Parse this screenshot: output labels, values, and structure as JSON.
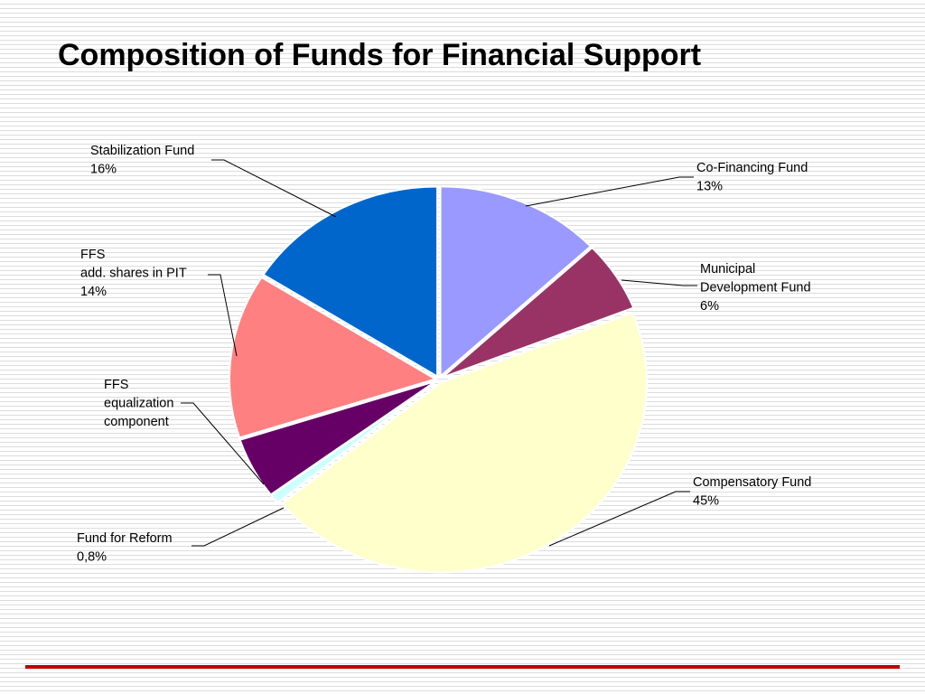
{
  "slide": {
    "title": "Composition of Funds for Financial Support"
  },
  "colors": {
    "accent_rule": "#c00000"
  },
  "chart_data": {
    "type": "pie",
    "title": "",
    "slices": [
      {
        "label": [
          "Co-Financing Fund",
          "13%"
        ],
        "value": 13,
        "color": "#9999ff"
      },
      {
        "label": [
          "Municipal",
          "Development Fund",
          "6%"
        ],
        "value": 6,
        "color": "#993366"
      },
      {
        "label": [
          "Compensatory Fund",
          "45%"
        ],
        "value": 45,
        "color": "#ffffcc"
      },
      {
        "label": [
          "Fund for Reform",
          "0,8%"
        ],
        "value": 0.8,
        "color": "#ccffff"
      },
      {
        "label": [
          "FFS",
          "equalization",
          "component"
        ],
        "value": 5.2,
        "color": "#660066"
      },
      {
        "label": [
          "FFS",
          "add. shares in PIT",
          "14%"
        ],
        "value": 14,
        "color": "#ff8080"
      },
      {
        "label": [
          "Stabilization Fund",
          "16%"
        ],
        "value": 16,
        "color": "#0066cc"
      }
    ]
  }
}
